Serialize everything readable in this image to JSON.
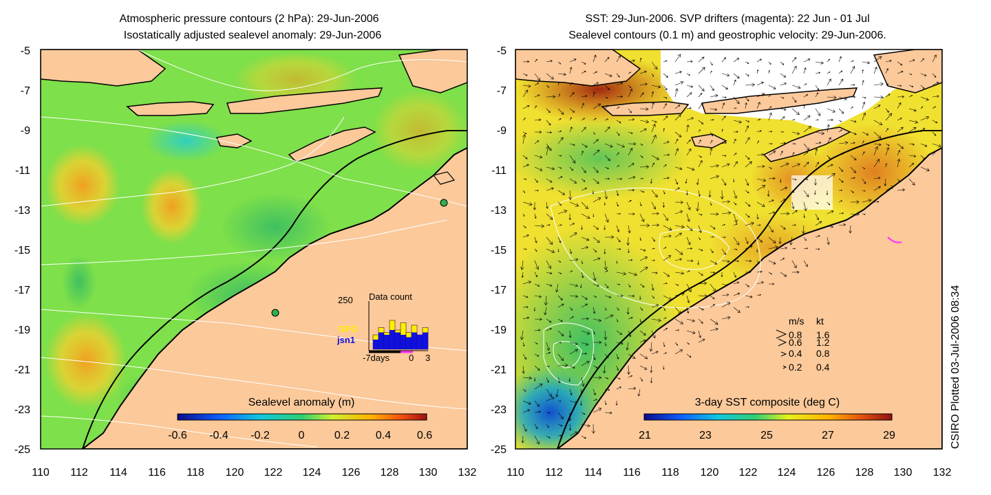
{
  "left_panel": {
    "title_line1": "Atmospheric pressure contours (2 hPa): 29-Jun-2006",
    "title_line2": "Isostatically adjusted sealevel anomaly: 29-Jun-2006",
    "y_ticks": [
      "-5",
      "-7",
      "-9",
      "-11",
      "-13",
      "-15",
      "-17",
      "-19",
      "-21",
      "-23",
      "-25"
    ],
    "x_ticks": [
      "110",
      "112",
      "114",
      "116",
      "118",
      "120",
      "122",
      "124",
      "126",
      "128",
      "130",
      "132"
    ],
    "colorbar_title": "Sealevel anomaly (m)",
    "colorbar_ticks": [
      "-0.6",
      "-0.4",
      "-0.2",
      "0",
      "0.2",
      "0.4",
      "0.6"
    ],
    "inset": {
      "title": "Data count",
      "max_label": "250",
      "x_labels": [
        "-7days",
        "0",
        "3"
      ],
      "legend": [
        {
          "label": "GFO",
          "color": "#ffee00"
        },
        {
          "label": "jsn1",
          "color": "#1010e0"
        }
      ],
      "bars_gfo": [
        0.3,
        0.45,
        0.35,
        0.6,
        0.4,
        0.55,
        0.35,
        0.5,
        0.3,
        0.45
      ],
      "bars_jsn1": [
        0.2,
        0.35,
        0.3,
        0.4,
        0.35,
        0.3,
        0.25,
        0.35,
        0.3,
        0.35
      ]
    }
  },
  "right_panel": {
    "title_line1": "SST: 29-Jun-2006. SVP drifters (magenta): 22 Jun - 01 Jul",
    "title_line2": "Sealevel contours (0.1 m) and geostrophic velocity: 29-Jun-2006.",
    "y_ticks": [
      "-5",
      "-7",
      "-9",
      "-11",
      "-13",
      "-15",
      "-17",
      "-19",
      "-21",
      "-23",
      "-25"
    ],
    "x_ticks": [
      "110",
      "112",
      "114",
      "116",
      "118",
      "120",
      "122",
      "124",
      "126",
      "128",
      "130",
      "132"
    ],
    "colorbar_title": "3-day SST composite (deg C)",
    "colorbar_ticks": [
      "21",
      "23",
      "25",
      "27",
      "29"
    ],
    "velocity_key": {
      "header_ms": "m/s",
      "header_kt": "kt",
      "rows": [
        {
          "ms": "0.8",
          "kt": "1.6"
        },
        {
          "ms": "0.6",
          "kt": "1.2"
        },
        {
          "ms": "0.4",
          "kt": "0.8"
        },
        {
          "ms": "0.2",
          "kt": "0.4"
        }
      ]
    }
  },
  "credit": "CSIRO Plotted 03-Jul-2006 08:34",
  "colors": {
    "land": "#fcc99a",
    "sla_base": "#7ee04a",
    "sst_base": "#f0e030",
    "coast": "#000000",
    "contour": "#ffffff"
  }
}
